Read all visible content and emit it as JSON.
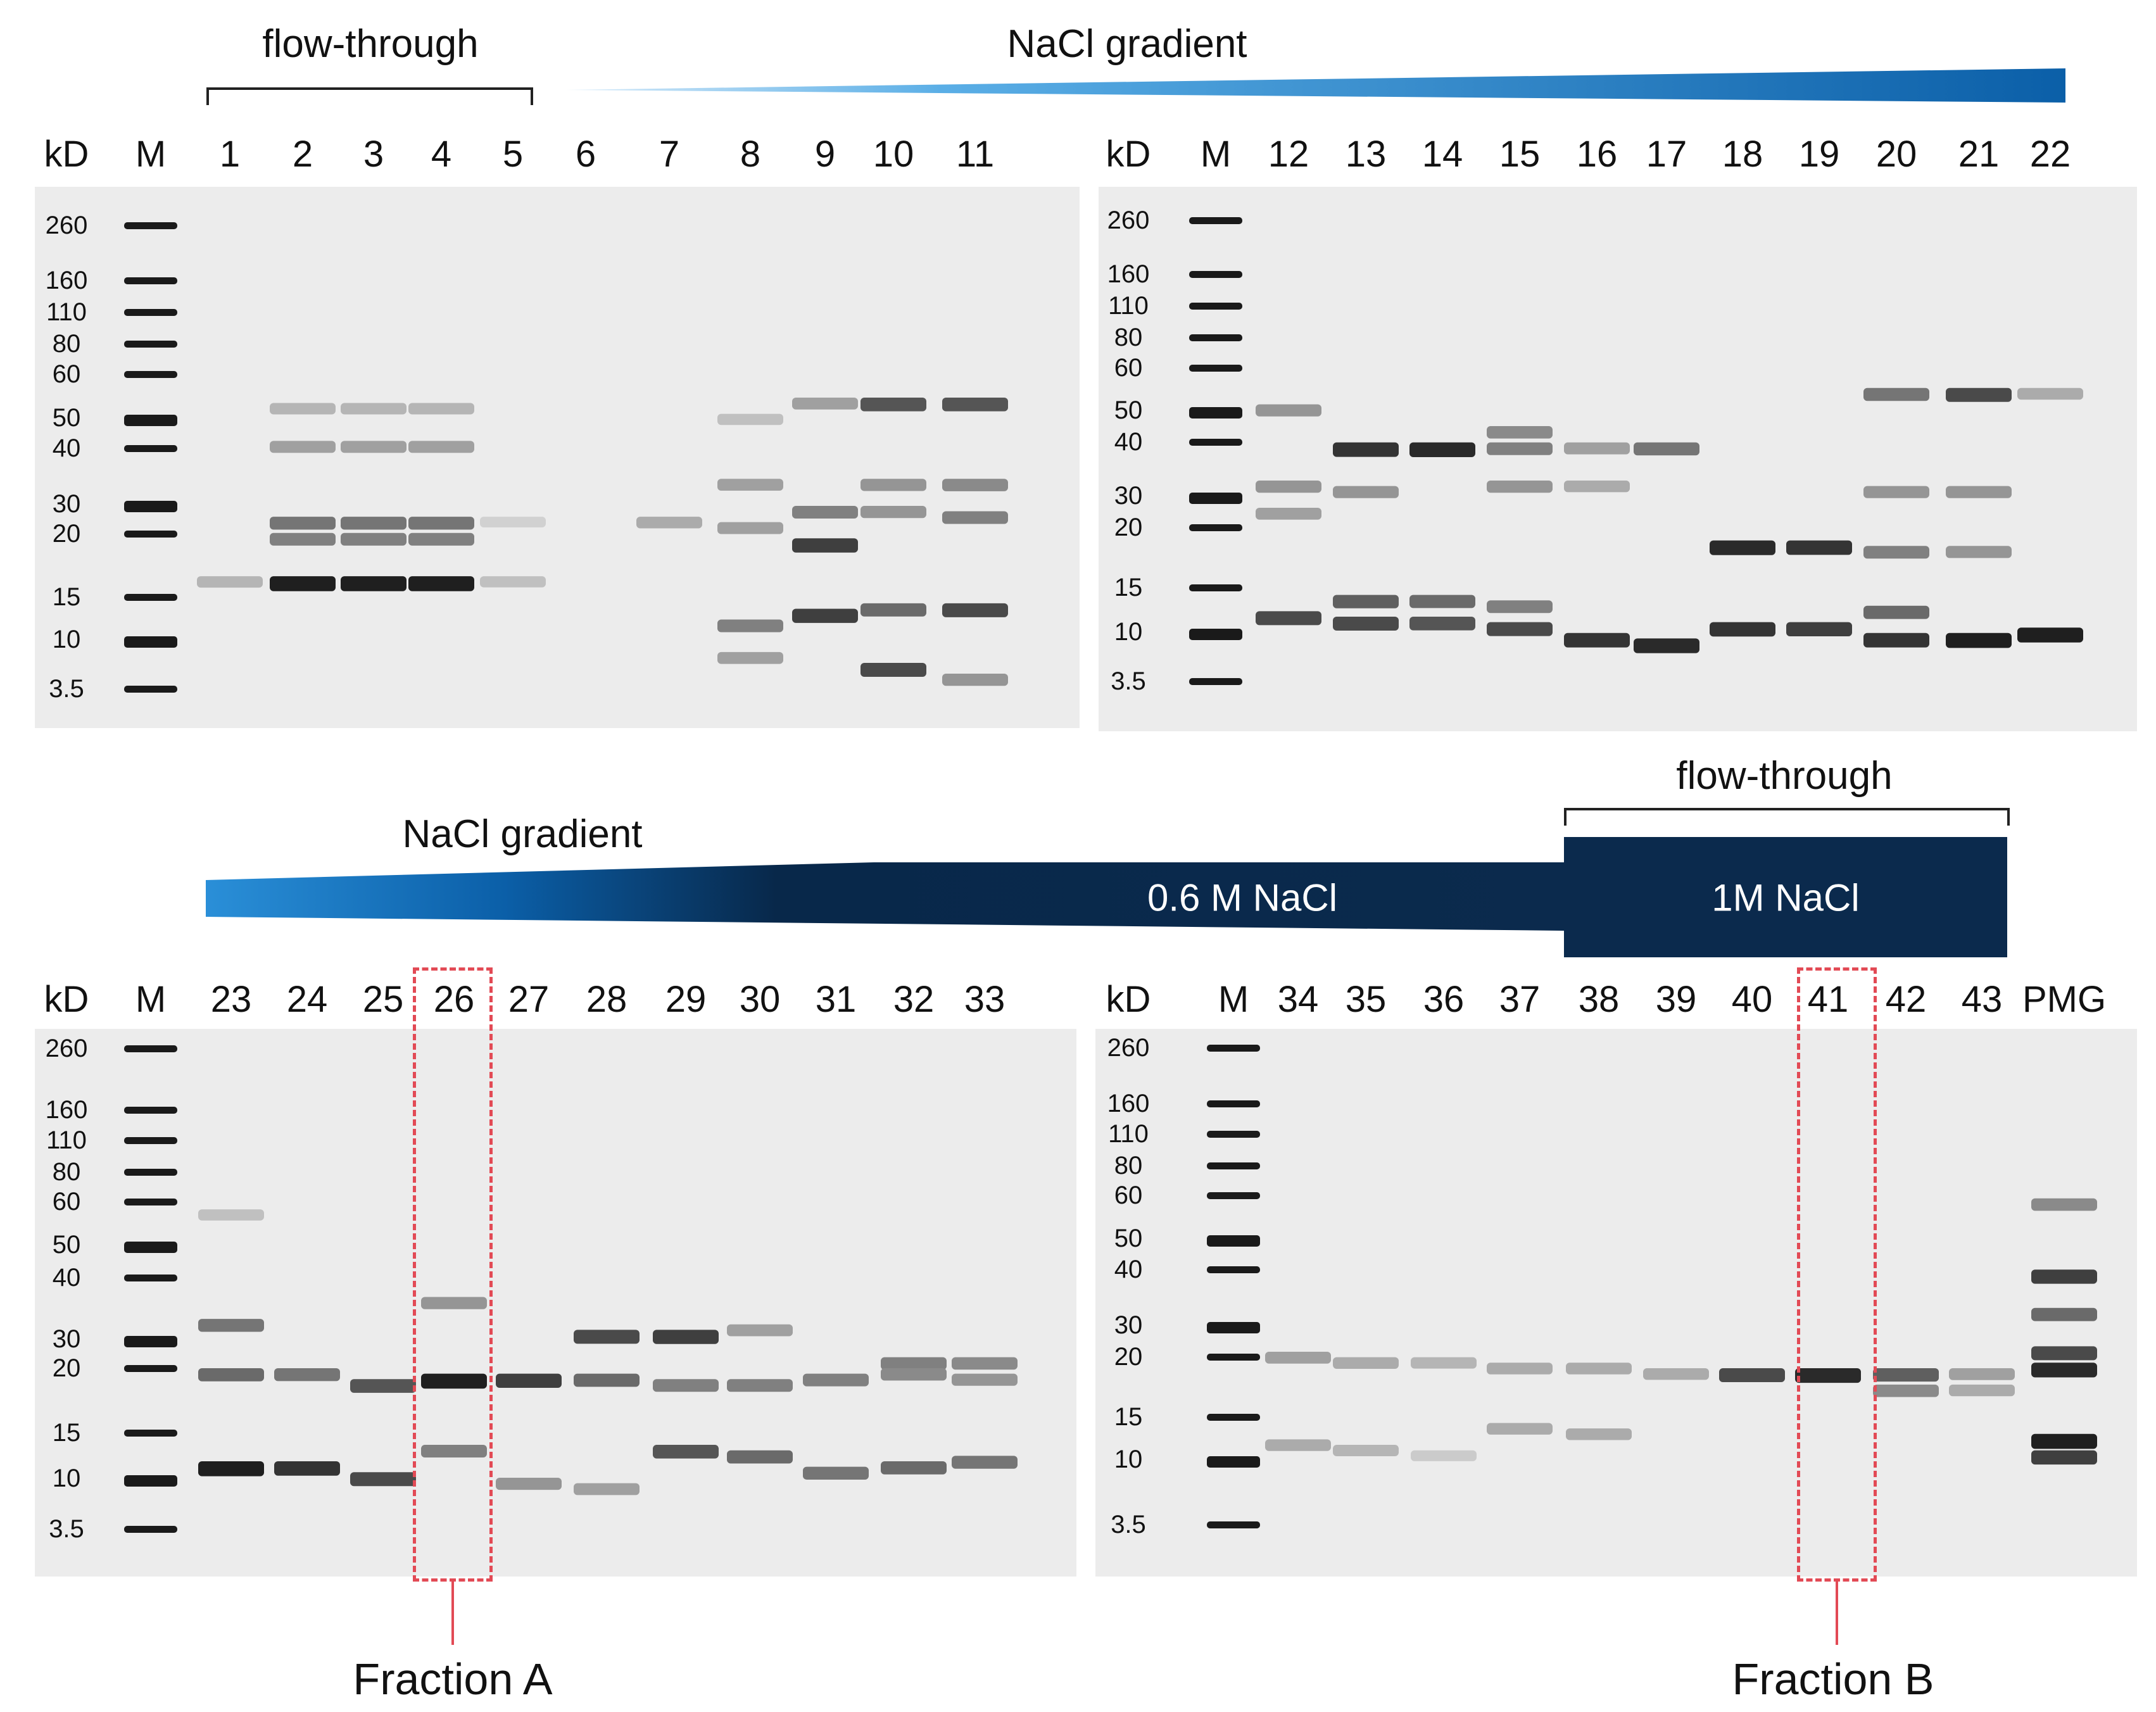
{
  "figure": {
    "top": {
      "flow_through_label": "flow-through",
      "gradient_label": "NaCl gradient"
    },
    "middle": {
      "gradient_label": "NaCl gradient",
      "plateau_label": "0.6 M NaCl",
      "flow_through_label": "flow-through",
      "wash_label": "1M NaCl"
    },
    "colors": {
      "gradient_start": "#5aaee6",
      "gradient_mid": "#0b5fa8",
      "gradient_end": "#08284a",
      "navy": "#0b2a4d",
      "highlight": "#e24a55",
      "gel_bg": "#ececec"
    }
  },
  "gels": [
    {
      "kd_label": "kD",
      "lanes": [
        "M",
        "1",
        "2",
        "3",
        "4",
        "5",
        "6",
        "7",
        "8",
        "9",
        "10",
        "11"
      ],
      "markers": [
        "260",
        "160",
        "110",
        "80",
        "60",
        "50",
        "40",
        "30",
        "20",
        "15",
        "10",
        "3.5"
      ]
    },
    {
      "kd_label": "kD",
      "lanes": [
        "M",
        "12",
        "13",
        "14",
        "15",
        "16",
        "17",
        "18",
        "19",
        "20",
        "21",
        "22"
      ],
      "markers": [
        "260",
        "160",
        "110",
        "80",
        "60",
        "50",
        "40",
        "30",
        "20",
        "15",
        "10",
        "3.5"
      ]
    },
    {
      "kd_label": "kD",
      "lanes": [
        "M",
        "23",
        "24",
        "25",
        "26",
        "27",
        "28",
        "29",
        "30",
        "31",
        "32",
        "33"
      ],
      "markers": [
        "260",
        "160",
        "110",
        "80",
        "60",
        "50",
        "40",
        "30",
        "20",
        "15",
        "10",
        "3.5"
      ]
    },
    {
      "kd_label": "kD",
      "lanes": [
        "M",
        "34",
        "35",
        "36",
        "37",
        "38",
        "39",
        "40",
        "41",
        "42",
        "43",
        "PMG"
      ],
      "markers": [
        "260",
        "160",
        "110",
        "80",
        "60",
        "50",
        "40",
        "30",
        "20",
        "15",
        "10",
        "3.5"
      ]
    }
  ],
  "fractions": [
    {
      "label": "Fraction A",
      "lane": "26"
    },
    {
      "label": "Fraction B",
      "lane": "41"
    }
  ]
}
